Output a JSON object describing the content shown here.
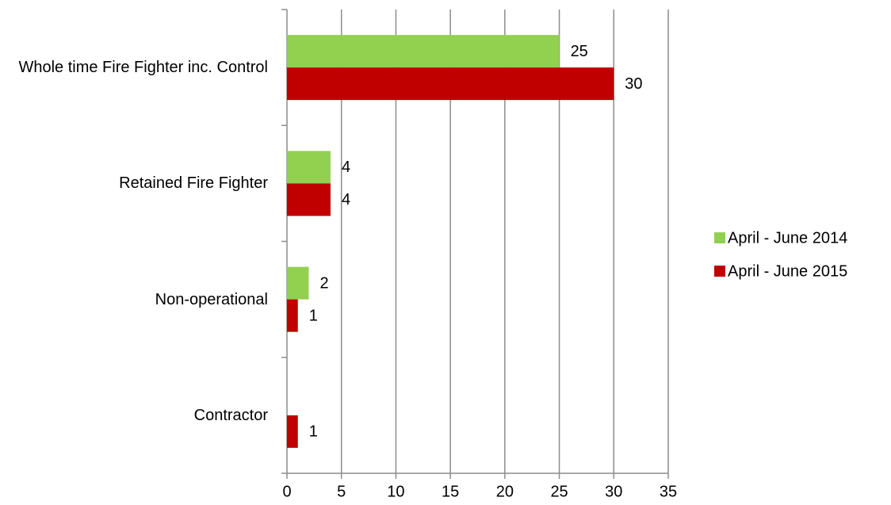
{
  "chart_data": {
    "type": "bar",
    "orientation": "horizontal",
    "categories": [
      "Whole time Fire Fighter inc. Control",
      "Retained Fire Fighter",
      "Non-operational",
      "Contractor"
    ],
    "series": [
      {
        "name": "April - June 2014",
        "color": "#92d050",
        "values": [
          25,
          4,
          2,
          null
        ]
      },
      {
        "name": "April - June 2015",
        "color": "#c00000",
        "values": [
          30,
          4,
          1,
          1
        ]
      }
    ],
    "xlim": [
      0,
      35
    ],
    "xticks": [
      0,
      5,
      10,
      15,
      20,
      25,
      30,
      35
    ],
    "grid": true,
    "legend": "right"
  }
}
